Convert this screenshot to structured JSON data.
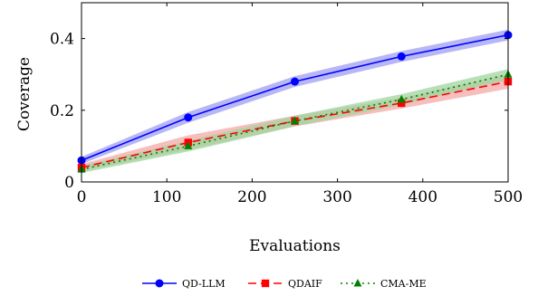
{
  "chart_data": {
    "type": "line",
    "title": "",
    "xlabel": "Evaluations",
    "ylabel": "Coverage",
    "xlim": [
      0,
      500
    ],
    "ylim": [
      0,
      0.5
    ],
    "xticks": [
      0,
      100,
      200,
      300,
      400,
      500
    ],
    "xtick_labels": [
      "0",
      "100",
      "200",
      "300",
      "400",
      "500"
    ],
    "yticks": [
      0,
      0.2,
      0.4
    ],
    "ytick_labels": [
      "0",
      "0.2",
      "0.4"
    ],
    "grid": false,
    "legend_position": "bottom",
    "x": [
      0,
      125,
      250,
      375,
      500
    ],
    "series": [
      {
        "name": "QD-LLM",
        "values": [
          0.06,
          0.18,
          0.28,
          0.35,
          0.41
        ],
        "lower": [
          0.05,
          0.165,
          0.265,
          0.335,
          0.395
        ],
        "upper": [
          0.07,
          0.195,
          0.295,
          0.365,
          0.425
        ],
        "color": "#0000ff",
        "band_color": "#9f9ff2",
        "marker": "circle",
        "line_style": "solid"
      },
      {
        "name": "QDAIF",
        "values": [
          0.04,
          0.11,
          0.17,
          0.22,
          0.28
        ],
        "lower": [
          0.03,
          0.09,
          0.155,
          0.205,
          0.26
        ],
        "upper": [
          0.05,
          0.13,
          0.185,
          0.235,
          0.3
        ],
        "color": "#ff0000",
        "band_color": "#f5a8a8",
        "marker": "square",
        "line_style": "dashed"
      },
      {
        "name": "CMA-ME",
        "values": [
          0.035,
          0.1,
          0.17,
          0.23,
          0.3
        ],
        "lower": [
          0.025,
          0.085,
          0.155,
          0.215,
          0.285
        ],
        "upper": [
          0.045,
          0.115,
          0.185,
          0.245,
          0.315
        ],
        "color": "#008000",
        "band_color": "#9fd69f",
        "marker": "triangle",
        "line_style": "dotted"
      }
    ]
  }
}
